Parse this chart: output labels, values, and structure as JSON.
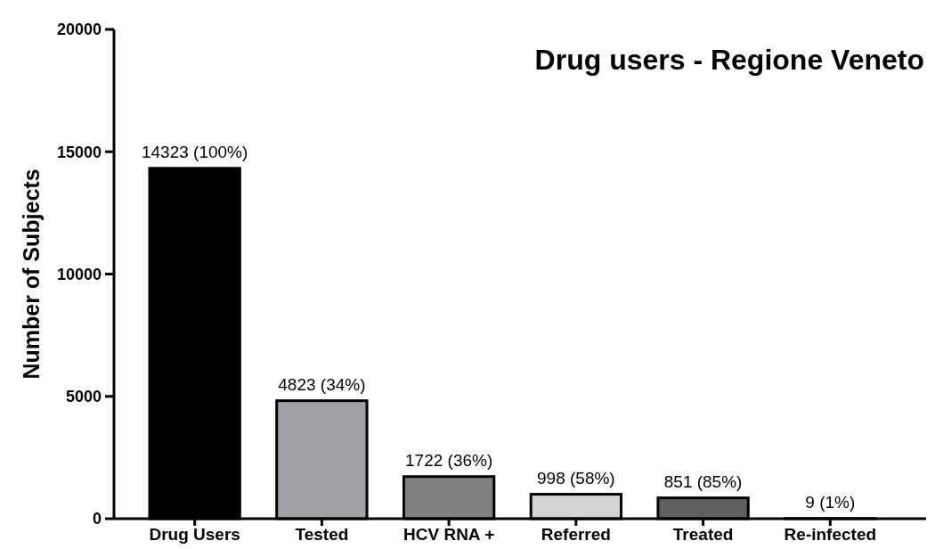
{
  "chart_data": {
    "type": "bar",
    "title": "Drug users - Regione Veneto",
    "ylabel": "Number of Subjects",
    "categories": [
      "Drug Users",
      "Tested",
      "HCV RNA +",
      "Referred",
      "Treated",
      "Re-infected"
    ],
    "values": [
      14323,
      4823,
      1722,
      998,
      851,
      9
    ],
    "colors": [
      "#000000",
      "#a1a0a6",
      "#808080",
      "#d4d4d4",
      "#606060",
      "#000000"
    ],
    "value_labels": [
      "14323 (100%)",
      "4823 (34%)",
      "1722 (36%)",
      "998 (58%)",
      "851 (85%)",
      "9 (1%)"
    ],
    "ylim": [
      0,
      20000
    ],
    "yticks": [
      0,
      5000,
      10000,
      15000,
      20000
    ],
    "grid": false
  }
}
